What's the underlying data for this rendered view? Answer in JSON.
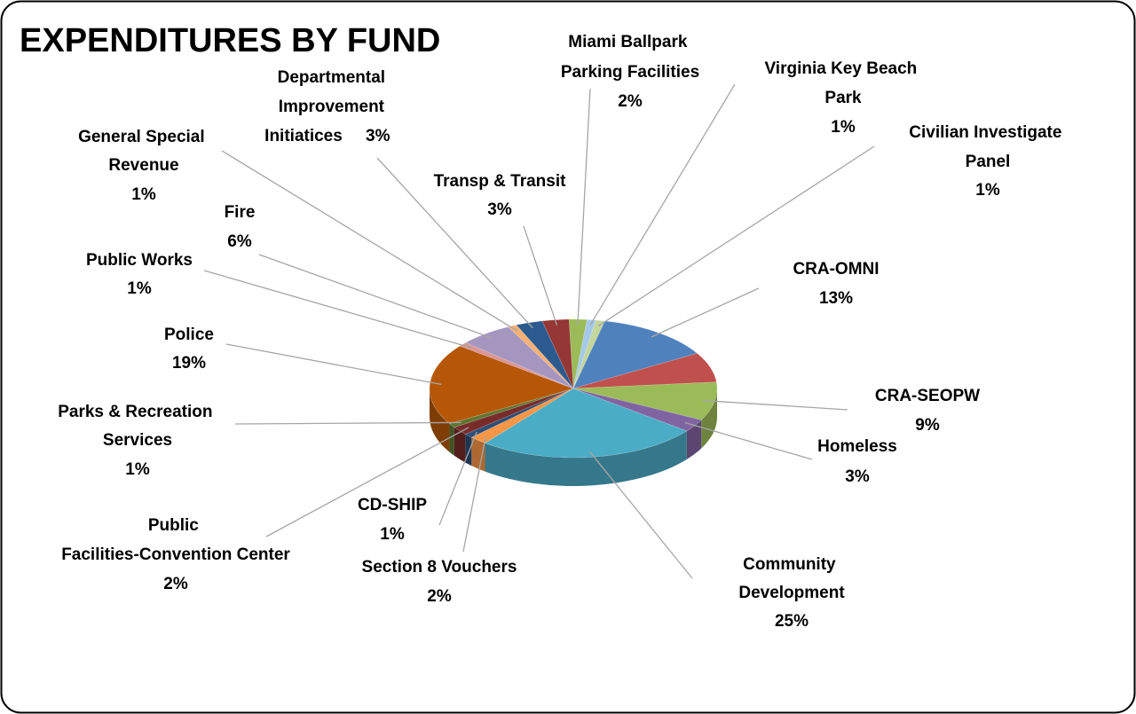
{
  "chart_data": {
    "type": "pie3d",
    "title": "EXPENDITURES BY FUND",
    "categories": [
      "Miami Ballpark Parking Facilities",
      "Virginia Key Beach Park",
      "Civilian Investigate Panel",
      "CRA-OMNI",
      null,
      "CRA-SEOPW",
      "Homeless",
      "Community Development",
      "Section 8 Vouchers",
      "CD-SHIP",
      "Public Facilities-Convention Center",
      "Parks & Recreation Services",
      "Police",
      "Public Works",
      "Fire",
      "General Special Revenue",
      "Departmental Improvement Initiatices",
      "Transp & Transit"
    ],
    "values": [
      2,
      1,
      1,
      13,
      7,
      9,
      3,
      25,
      2,
      1,
      2,
      1,
      19,
      1,
      6,
      1,
      3,
      3
    ],
    "value_labels": [
      "2%",
      "1%",
      "1%",
      "13%",
      null,
      "9%",
      "3%",
      "25%",
      "2%",
      "1%",
      "2%",
      "1%",
      "19%",
      "1%",
      "6%",
      "1%",
      "3%",
      "3%"
    ],
    "colors": [
      "#9bbb59",
      "#a6c8e8",
      "#c3d69b",
      "#4f81bd",
      "#c0504d",
      "#9bbb59",
      "#8064a2",
      "#4bacc6",
      "#f79646",
      "#2c4d75",
      "#772c2a",
      "#5f7530",
      "#b65708",
      "#d99694",
      "#a596c0",
      "#f9b074",
      "#2c5a8e",
      "#953735"
    ]
  }
}
